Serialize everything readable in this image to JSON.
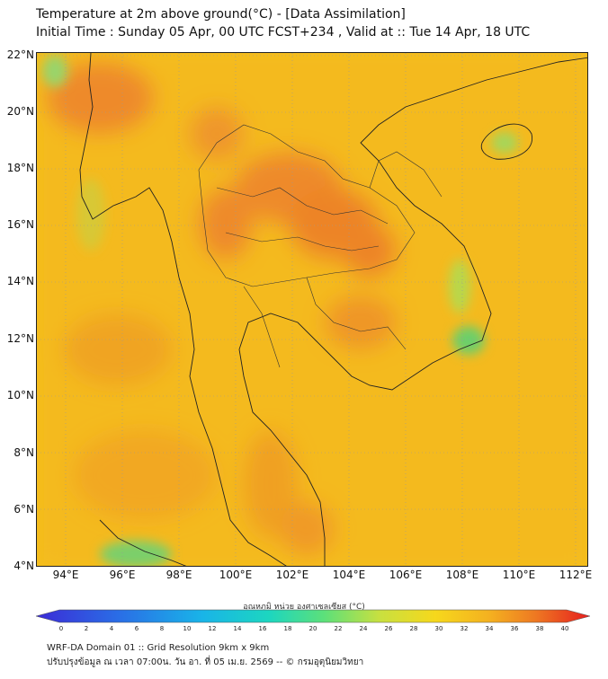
{
  "title": {
    "line1": "Temperature at 2m above ground(°C) - [Data Assimilation]",
    "line2": "Initial Time : Sunday 05 Apr, 00 UTC FCST+234 , Valid at :: Tue 14 Apr, 18 UTC"
  },
  "map": {
    "lat_labels": [
      "22°N",
      "20°N",
      "18°N",
      "16°N",
      "14°N",
      "12°N",
      "10°N",
      "8°N",
      "6°N",
      "4°N"
    ],
    "lon_labels": [
      "94°E",
      "96°E",
      "98°E",
      "100°E",
      "102°E",
      "104°E",
      "106°E",
      "108°E",
      "110°E",
      "112°E"
    ],
    "extent": {
      "lon_min": 93,
      "lon_max": 112.5,
      "lat_min": 4,
      "lat_max": 22.2
    }
  },
  "colorbar": {
    "title": "อุณหภูมิ หน่วย องศาเซลเซียส (°C)",
    "ticks": [
      "0",
      "2",
      "4",
      "6",
      "8",
      "10",
      "12",
      "14",
      "16",
      "18",
      "20",
      "22",
      "24",
      "26",
      "28",
      "30",
      "32",
      "34",
      "36",
      "38",
      "40"
    ],
    "min": 0,
    "max": 40
  },
  "footer": {
    "line1": "WRF-DA Domain 01 :: Grid Resolution 9km x 9km",
    "line2": "ปรับปรุงข้อมูล ณ เวลา 07:00น. วัน อา. ที่ 05 เม.ย. 2569 -- © กรมอุตุนิยมวิทยา"
  },
  "colors": {
    "sea": "#f5c518",
    "warm": "#f0a020",
    "hot": "#ee8822",
    "cool": "#66cc66",
    "border": "#222222"
  }
}
